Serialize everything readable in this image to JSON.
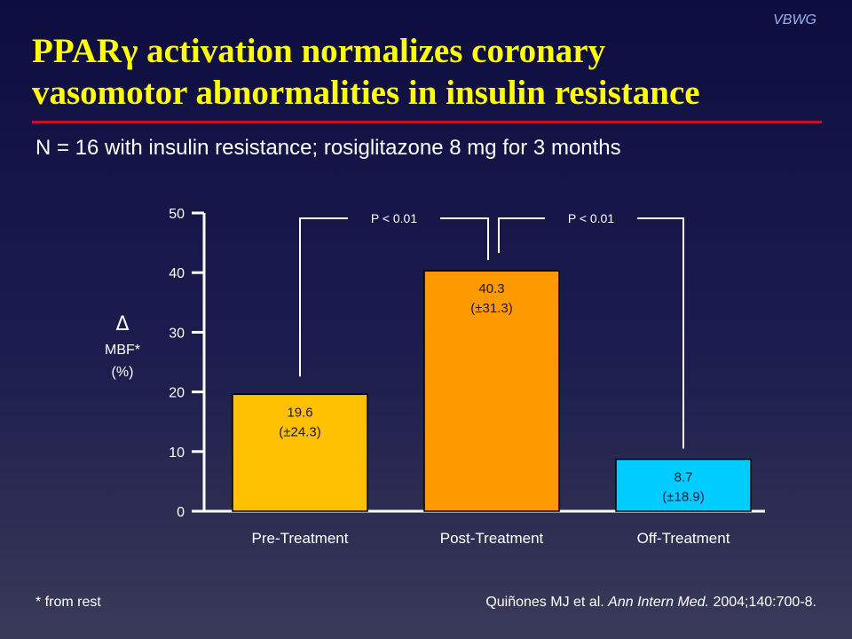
{
  "header": {
    "brand": "VBWG",
    "title_line1": "PPARγ activation normalizes coronary",
    "title_line2": "vasomotor abnormalities in insulin resistance",
    "subtitle": "N = 16 with insulin resistance; rosiglitazone 8 mg for 3 months"
  },
  "chart_data": {
    "type": "bar",
    "title": "",
    "ylabel": [
      "Δ",
      "MBF*",
      "(%)"
    ],
    "xlabel": "",
    "ylim": [
      0,
      50
    ],
    "yticks": [
      0,
      10,
      20,
      30,
      40,
      50
    ],
    "categories": [
      "Pre-Treatment",
      "Post-Treatment",
      "Off-Treatment"
    ],
    "values": [
      19.6,
      40.3,
      8.7
    ],
    "value_labels": [
      "19.6",
      "40.3",
      "8.7"
    ],
    "sd_labels": [
      "(±24.3)",
      "(±31.3)",
      "(±18.9)"
    ],
    "bar_colors": [
      "#ffc000",
      "#ff9900",
      "#00ccff"
    ],
    "comparisons": [
      {
        "from": 0,
        "to": 1,
        "label": "P < 0.01"
      },
      {
        "from": 1,
        "to": 2,
        "label": "P < 0.01"
      }
    ],
    "grid": false,
    "legend": "none"
  },
  "footer": {
    "footnote": "* from rest",
    "citation_authors": "Quiñones MJ et al. ",
    "citation_journal": "Ann Intern Med.",
    "citation_ref": " 2004;140:700-8."
  }
}
